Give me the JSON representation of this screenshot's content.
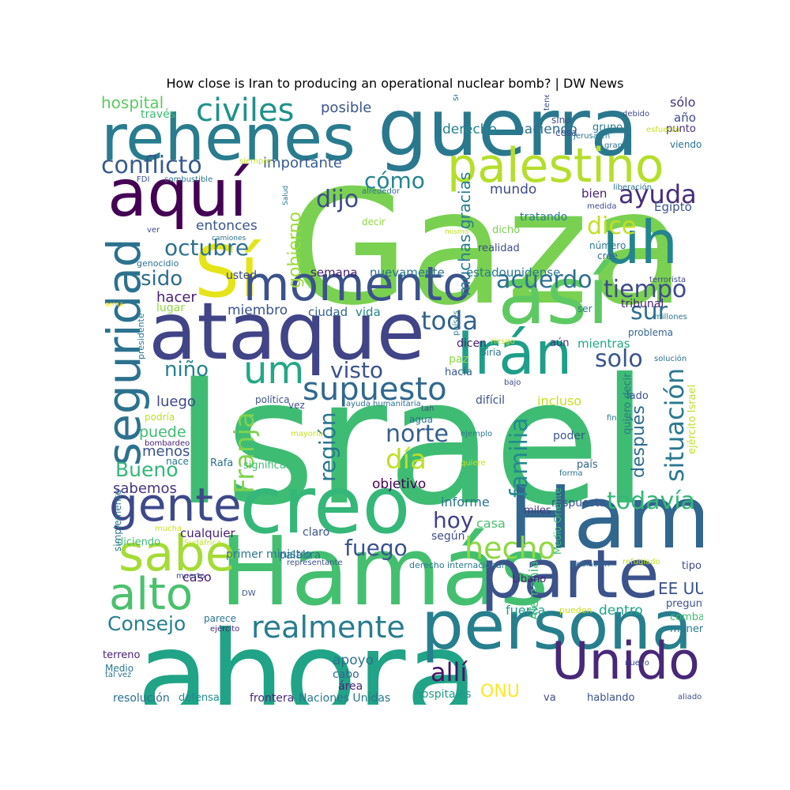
{
  "title": "How close is Iran to producing an operational nuclear bomb? | DW News",
  "palette": {
    "dark_purple": "#440154",
    "indigo": "#46337e",
    "blue": "#365c8d",
    "teal": "#277f8e",
    "green_teal": "#1fa187",
    "green": "#4ac16d",
    "light_green": "#a0da39",
    "yellow": "#fde725"
  },
  "words": [
    {
      "text": "Israel",
      "color": "#3fbc73"
    },
    {
      "text": "Gaza",
      "color": "#7ad151"
    },
    {
      "text": "guerra",
      "color": "#2a788e"
    },
    {
      "text": "rehenes",
      "color": "#287c8e"
    },
    {
      "text": "ahora",
      "color": "#20a386"
    },
    {
      "text": "Hamás",
      "color": "#44bf70"
    },
    {
      "text": "Hama",
      "color": "#31668e"
    },
    {
      "text": "ataque",
      "color": "#414487"
    },
    {
      "text": "persona",
      "color": "#277f8e"
    },
    {
      "text": "parte",
      "color": "#3b528b"
    },
    {
      "text": "creo",
      "color": "#35b779"
    },
    {
      "text": "así",
      "color": "#5ec962"
    },
    {
      "text": "uh",
      "color": "#25858e"
    },
    {
      "text": "aquí",
      "color": "#440154"
    },
    {
      "text": "Sí",
      "color": "#e5e419"
    },
    {
      "text": "momento",
      "color": "#3b528b"
    },
    {
      "text": "palestino",
      "color": "#b5de2b"
    },
    {
      "text": "Irán",
      "color": "#1f9e89"
    },
    {
      "text": "seguridad",
      "color": "#2c728e"
    },
    {
      "text": "Unido",
      "color": "#482878"
    },
    {
      "text": "sabe",
      "color": "#a5db36"
    },
    {
      "text": "alto",
      "color": "#4ac16d"
    },
    {
      "text": "gente",
      "color": "#3e4989"
    },
    {
      "text": "civiles",
      "color": "#21918c"
    },
    {
      "text": "um",
      "color": "#22a884"
    },
    {
      "text": "supuesto",
      "color": "#31688e"
    },
    {
      "text": "realmente",
      "color": "#287d8e"
    },
    {
      "text": "situación",
      "color": "#2a788e"
    },
    {
      "text": "hecho",
      "color": "#8fd744"
    },
    {
      "text": "Franja",
      "color": "#7fd34e"
    },
    {
      "text": "conflicto",
      "color": "#375a8c"
    },
    {
      "text": "ayuda",
      "color": "#472d7b"
    },
    {
      "text": "acuerdo",
      "color": "#2d708e"
    },
    {
      "text": "tiempo",
      "color": "#3e4a89"
    },
    {
      "text": "toda",
      "color": "#33638d"
    },
    {
      "text": "todavía",
      "color": "#35b779"
    },
    {
      "text": "familia",
      "color": "#238a8d"
    },
    {
      "text": "día",
      "color": "#bddf26"
    },
    {
      "text": "norte",
      "color": "#355f8d"
    },
    {
      "text": "región",
      "color": "#2a768e"
    },
    {
      "text": "visto",
      "color": "#3b528b"
    },
    {
      "text": "dijo",
      "color": "#3e4c8a"
    },
    {
      "text": "cómo",
      "color": "#25848e"
    },
    {
      "text": "dice",
      "color": "#c2df23"
    },
    {
      "text": "sur",
      "color": "#2e6f8e"
    },
    {
      "text": "solo",
      "color": "#39568c"
    },
    {
      "text": "fuego",
      "color": "#3a548c"
    },
    {
      "text": "hoy",
      "color": "#414287"
    },
    {
      "text": "allí",
      "color": "#471365"
    },
    {
      "text": "octubre",
      "color": "#2c718e"
    },
    {
      "text": "gobierno",
      "color": "#9dd93b"
    },
    {
      "text": "sido",
      "color": "#2f6c8e"
    },
    {
      "text": "niño",
      "color": "#26828e"
    },
    {
      "text": "Bueno",
      "color": "#35b779"
    },
    {
      "text": "Consejo",
      "color": "#277f8e"
    },
    {
      "text": "después",
      "color": "#2f6b8e"
    },
    {
      "text": "ONU",
      "color": "#fde725"
    },
    {
      "text": "EE UU",
      "color": "#3b528b"
    },
    {
      "text": "hospital",
      "color": "#5ec962"
    },
    {
      "text": "posible",
      "color": "#3a548c"
    },
    {
      "text": "importante",
      "color": "#375b8d"
    },
    {
      "text": "muchas gracias",
      "color": "#287c8e"
    },
    {
      "text": "haciendo",
      "color": "#2d708e"
    },
    {
      "text": "derecho",
      "color": "#25848e"
    },
    {
      "text": "mundo",
      "color": "#3e4a89"
    },
    {
      "text": "entonces",
      "color": "#39568c"
    },
    {
      "text": "semana",
      "color": "#481f70"
    },
    {
      "text": "nuevamente",
      "color": "#2c728e"
    },
    {
      "text": "estadounidense",
      "color": "#2a788e"
    },
    {
      "text": "miembro",
      "color": "#3b528b"
    },
    {
      "text": "ciudad",
      "color": "#33638d"
    },
    {
      "text": "vida",
      "color": "#25858e"
    },
    {
      "text": "hacer",
      "color": "#482173"
    },
    {
      "text": "usted",
      "color": "#3e4989"
    },
    {
      "text": "lugar",
      "color": "#8fd744"
    },
    {
      "text": "luego",
      "color": "#3f4788"
    },
    {
      "text": "puede",
      "color": "#3fbc73"
    },
    {
      "text": "menos",
      "color": "#3b528b"
    },
    {
      "text": "sabemos",
      "color": "#46337e"
    },
    {
      "text": "objetivo",
      "color": "#440154"
    },
    {
      "text": "informe",
      "color": "#2c728e"
    },
    {
      "text": "respuesta",
      "color": "#3b528b"
    },
    {
      "text": "casa",
      "color": "#4ac16d"
    },
    {
      "text": "cualquier",
      "color": "#481f70"
    },
    {
      "text": "claro",
      "color": "#3b528b"
    },
    {
      "text": "primer ministro",
      "color": "#2a788e"
    },
    {
      "text": "según",
      "color": "#3e4c8a"
    },
    {
      "text": "miles",
      "color": "#46337e"
    },
    {
      "text": "palabra",
      "color": "#2a788e"
    },
    {
      "text": "caso",
      "color": "#481a6c"
    },
    {
      "text": "fuerza",
      "color": "#1f9e89"
    },
    {
      "text": "dentro",
      "color": "#20a386"
    },
    {
      "text": "apoyo",
      "color": "#2c728e"
    },
    {
      "text": "cabo",
      "color": "#31688e"
    },
    {
      "text": "área",
      "color": "#482475"
    },
    {
      "text": "hospitales",
      "color": "#1f9a8a"
    },
    {
      "text": "Alemania",
      "color": "#3fbc73"
    },
    {
      "text": "va",
      "color": "#3e4989"
    },
    {
      "text": "hablando",
      "color": "#3b528b"
    },
    {
      "text": "resolución",
      "color": "#2d708e"
    },
    {
      "text": "defensa",
      "color": "#238a8d"
    },
    {
      "text": "frontera",
      "color": "#482878"
    },
    {
      "text": "Naciones Unidas",
      "color": "#2a788e"
    },
    {
      "text": "dicen",
      "color": "#481f70"
    },
    {
      "text": "paz",
      "color": "#8fd744"
    },
    {
      "text": "hacia",
      "color": "#39568c"
    },
    {
      "text": "Siria",
      "color": "#2a788e"
    },
    {
      "text": "aún",
      "color": "#46337e"
    },
    {
      "text": "mientras",
      "color": "#22a884"
    },
    {
      "text": "incluso",
      "color": "#c8e020"
    },
    {
      "text": "difícil",
      "color": "#3b528b"
    },
    {
      "text": "vez",
      "color": "#3e4989"
    },
    {
      "text": "agua",
      "color": "#2d708e"
    },
    {
      "text": "poder",
      "color": "#39568c"
    },
    {
      "text": "país",
      "color": "#33638d"
    },
    {
      "text": "lado",
      "color": "#3b528b"
    },
    {
      "text": "quiero decir",
      "color": "#2a788e"
    },
    {
      "text": "ejército Israel",
      "color": "#bddf26"
    },
    {
      "text": "bien",
      "color": "#482173"
    },
    {
      "text": "Egipto",
      "color": "#3b528b"
    },
    {
      "text": "tratando",
      "color": "#2a788e"
    },
    {
      "text": "dicho",
      "color": "#7ad151"
    },
    {
      "text": "realidad",
      "color": "#3e4c8a"
    },
    {
      "text": "número",
      "color": "#2a788e"
    },
    {
      "text": "cree",
      "color": "#31688e"
    },
    {
      "text": "ser",
      "color": "#2c728e"
    },
    {
      "text": "tribunal",
      "color": "#481f70"
    },
    {
      "text": "problema",
      "color": "#33638d"
    },
    {
      "text": "sólo",
      "color": "#46337e"
    },
    {
      "text": "año",
      "color": "#3e4989"
    },
    {
      "text": "punto",
      "color": "#472d7b"
    },
    {
      "text": "viendo",
      "color": "#2c728e"
    },
    {
      "text": "grupo",
      "color": "#2a788e"
    },
    {
      "text": "sino",
      "color": "#3b528b"
    },
    {
      "text": "cosa",
      "color": "#3e4a89"
    },
    {
      "text": "seguro",
      "color": "#2a788e"
    },
    {
      "text": "tener",
      "color": "#3b528b"
    },
    {
      "text": "debido",
      "color": "#3e4989"
    },
    {
      "text": "gran",
      "color": "#2d708e"
    },
    {
      "text": "esfuerzo",
      "color": "#c8e020"
    },
    {
      "text": "liberación",
      "color": "#2c728e"
    },
    {
      "text": "medida",
      "color": "#3e4c8a"
    },
    {
      "text": "alrededor",
      "color": "#2d708e"
    },
    {
      "text": "decir",
      "color": "#8fd744"
    },
    {
      "text": "mismo",
      "color": "#bddf26"
    },
    {
      "text": "través",
      "color": "#3fbc73"
    },
    {
      "text": "siempre",
      "color": "#bddf26"
    },
    {
      "text": "FDI",
      "color": "#3b528b"
    },
    {
      "text": "combustible",
      "color": "#2c728e"
    },
    {
      "text": "Salud",
      "color": "#2a788e"
    },
    {
      "text": "ver",
      "color": "#3e4989"
    },
    {
      "text": "camiones",
      "color": "#2c728e"
    },
    {
      "text": "genocidio",
      "color": "#2d708e"
    },
    {
      "text": "arma",
      "color": "#fde725"
    },
    {
      "text": "presidente",
      "color": "#2a788e"
    },
    {
      "text": "política",
      "color": "#3b528b"
    },
    {
      "text": "ayuda humanitaria",
      "color": "#2d708e"
    },
    {
      "text": "tan",
      "color": "#3e4989"
    },
    {
      "text": "podría",
      "color": "#bddf26"
    },
    {
      "text": "bombardeo",
      "color": "#482173"
    },
    {
      "text": "mayoría",
      "color": "#c8e020"
    },
    {
      "text": "ejemplo",
      "color": "#2a788e"
    },
    {
      "text": "quiere",
      "color": "#c8e020"
    },
    {
      "text": "forma",
      "color": "#2c728e"
    },
    {
      "text": "significa",
      "color": "#3fbc73"
    },
    {
      "text": "nace",
      "color": "#2a788e"
    },
    {
      "text": "Rafa",
      "color": "#2c728e"
    },
    {
      "text": "terrorista",
      "color": "#3e4989"
    },
    {
      "text": "millones",
      "color": "#2a788e"
    },
    {
      "text": "riesgo",
      "color": "#c8e020"
    },
    {
      "text": "países",
      "color": "#2a788e"
    },
    {
      "text": "solución",
      "color": "#2d708e"
    },
    {
      "text": "bajo",
      "color": "#3e4989"
    },
    {
      "text": "Jerusalén",
      "color": "#2a788e"
    },
    {
      "text": "población",
      "color": "#2d708e"
    },
    {
      "text": "refugiado",
      "color": "#bddf26"
    },
    {
      "text": "Líbano",
      "color": "#481f70"
    },
    {
      "text": "Medio Oriente",
      "color": "#3fbc73"
    },
    {
      "text": "derecho internacional",
      "color": "#2a788e"
    },
    {
      "text": "representante",
      "color": "#3b528b"
    },
    {
      "text": "fin",
      "color": "#2c728e"
    },
    {
      "text": "mucha",
      "color": "#c8e020"
    },
    {
      "text": "Sudáfrica",
      "color": "#bddf26"
    },
    {
      "text": "diciendo",
      "color": "#3fbc73"
    },
    {
      "text": "simplemente",
      "color": "#2a788e"
    },
    {
      "text": "muerto",
      "color": "#3e4989"
    },
    {
      "text": "DW",
      "color": "#3b528b"
    },
    {
      "text": "ejército",
      "color": "#482173"
    },
    {
      "text": "parece",
      "color": "#2c728e"
    },
    {
      "text": "pueden",
      "color": "#c8e020"
    },
    {
      "text": "pregunta",
      "color": "#3b528b"
    },
    {
      "text": "combate",
      "color": "#3fbc73"
    },
    {
      "text": "manera",
      "color": "#2a788e"
    },
    {
      "text": "tipo",
      "color": "#3e4989"
    },
    {
      "text": "terreno",
      "color": "#481f70"
    },
    {
      "text": "Medio",
      "color": "#2a788e"
    },
    {
      "text": "tal vez",
      "color": "#2c728e"
    },
    {
      "text": "nuevo",
      "color": "#3e4989"
    },
    {
      "text": "aliado",
      "color": "#3b528b"
    }
  ]
}
